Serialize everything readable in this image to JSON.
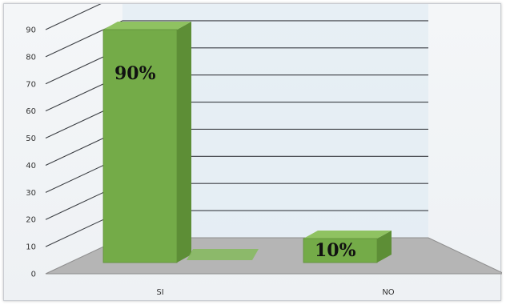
{
  "chart_data": {
    "type": "bar",
    "categories": [
      "SI",
      "NO"
    ],
    "values": [
      90,
      10
    ],
    "data_labels": [
      "90%",
      "10%"
    ],
    "title": "",
    "xlabel": "",
    "ylabel": "",
    "ylim": [
      0,
      90
    ],
    "y_ticks": [
      "0",
      "10",
      "20",
      "30",
      "40",
      "50",
      "60",
      "70",
      "80",
      "90"
    ],
    "grid": true,
    "legend": "none",
    "style": "3d-bar",
    "colors": {
      "bar_front": "#74ab48",
      "bar_side": "#5d8e36",
      "bar_top": "#8fc261",
      "floor": "#b5b5b5",
      "wall": "#dce9f3",
      "grid": "#3c3f44"
    }
  }
}
